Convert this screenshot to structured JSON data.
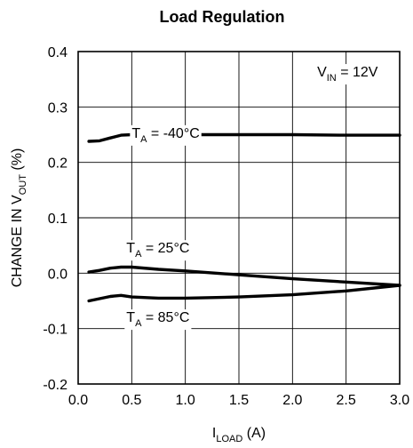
{
  "chart_data": {
    "type": "line",
    "title": "Load Regulation",
    "xlabel": {
      "main": "I",
      "sub": "LOAD",
      "unit": " (A)"
    },
    "ylabel": {
      "pre": "CHANGE IN V",
      "sub": "OUT",
      "unit": " (%)"
    },
    "xlim": [
      0.0,
      3.0
    ],
    "ylim": [
      -0.2,
      0.4
    ],
    "xticks": [
      0.0,
      0.5,
      1.0,
      1.5,
      2.0,
      2.5,
      3.0
    ],
    "xtick_labels": [
      "0.0",
      "0.5",
      "1.0",
      "1.5",
      "2.0",
      "2.5",
      "3.0"
    ],
    "yticks": [
      -0.2,
      -0.1,
      0.0,
      0.1,
      0.2,
      0.3,
      0.4
    ],
    "ytick_labels": [
      "-0.2",
      "-0.1",
      "0.0",
      "0.1",
      "0.2",
      "0.3",
      "0.4"
    ],
    "grid": true,
    "series": [
      {
        "name": "T_A = -40°C",
        "label": {
          "main": "T",
          "sub": "A",
          "rest": " = -40°C"
        },
        "x": [
          0.1,
          0.2,
          0.3,
          0.4,
          0.5,
          0.75,
          1.0,
          1.5,
          2.0,
          2.5,
          3.0
        ],
        "y": [
          0.238,
          0.239,
          0.244,
          0.249,
          0.25,
          0.25,
          0.25,
          0.25,
          0.25,
          0.249,
          0.249
        ]
      },
      {
        "name": "T_A = 25°C",
        "label": {
          "main": "T",
          "sub": "A",
          "rest": " = 25°C"
        },
        "x": [
          0.1,
          0.2,
          0.3,
          0.4,
          0.5,
          0.75,
          1.0,
          1.5,
          2.0,
          2.5,
          3.0
        ],
        "y": [
          0.002,
          0.005,
          0.009,
          0.011,
          0.011,
          0.007,
          0.004,
          -0.003,
          -0.01,
          -0.016,
          -0.022
        ]
      },
      {
        "name": "T_A = 85°C",
        "label": {
          "main": "T",
          "sub": "A",
          "rest": " = 85°C"
        },
        "x": [
          0.1,
          0.2,
          0.3,
          0.4,
          0.5,
          0.75,
          1.0,
          1.5,
          2.0,
          2.5,
          3.0
        ],
        "y": [
          -0.05,
          -0.046,
          -0.042,
          -0.04,
          -0.043,
          -0.045,
          -0.045,
          -0.043,
          -0.039,
          -0.032,
          -0.022
        ]
      }
    ],
    "annotation": {
      "main": "V",
      "sub": "IN",
      "rest": " = 12V"
    },
    "colors": {
      "line": "#000000",
      "grid": "#000000",
      "background": "#ffffff"
    }
  }
}
